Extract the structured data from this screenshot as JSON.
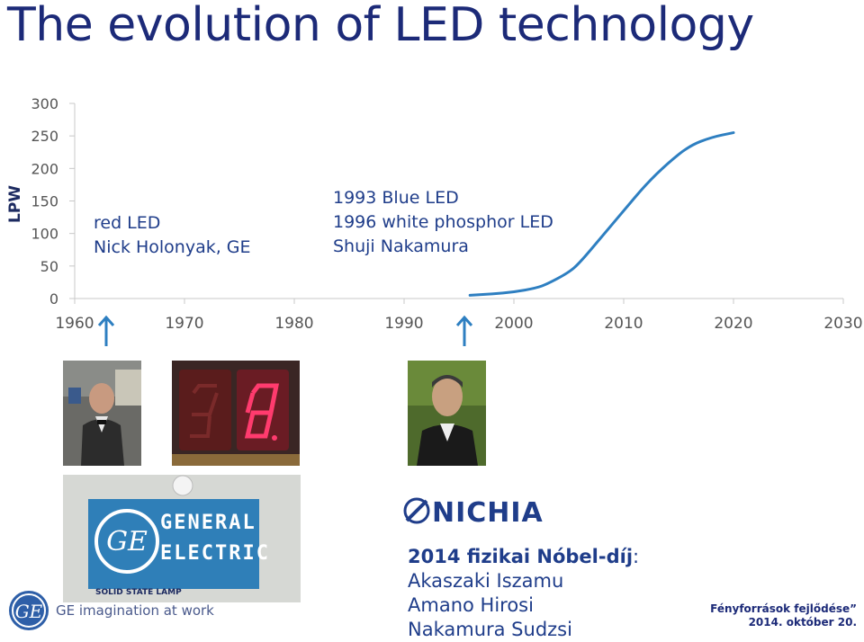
{
  "title": "The evolution of LED technology",
  "chart_data": {
    "type": "line",
    "ylabel": "LPW",
    "xlim": [
      1960,
      2030
    ],
    "ylim": [
      0,
      300
    ],
    "x_ticks": [
      1960,
      1970,
      1980,
      1990,
      2000,
      2010,
      2020,
      2030
    ],
    "y_ticks": [
      0,
      50,
      100,
      150,
      200,
      250,
      300
    ],
    "series": [
      {
        "x": [
          1996,
          1998,
          2000,
          2002,
          2003,
          2005,
          2006,
          2008,
          2010,
          2012,
          2014,
          2016,
          2018,
          2020
        ],
        "y": [
          5,
          7,
          10,
          16,
          22,
          40,
          55,
          95,
          135,
          175,
          208,
          235,
          248,
          255
        ]
      }
    ],
    "grid": false,
    "color": "#2e7fc1"
  },
  "annotations": {
    "left": [
      "red LED",
      "Nick Holonyak, GE"
    ],
    "mid": [
      "1993 Blue LED",
      "1996 white phosphor LED",
      "Shuji Nakamura"
    ]
  },
  "arrow_color": "#2e7fc1",
  "ge_card": {
    "line1": "GENERAL",
    "line2": "ELECTRIC",
    "caption": "SOLID STATE LAMP"
  },
  "nichia_logo": "NICHIA",
  "nobel": {
    "heading": "2014 fizikai Nóbel-díj",
    "names": [
      "Akaszaki Iszamu",
      "Amano Hirosi",
      "Nakamura Sudzsi"
    ]
  },
  "ge_logo_tagline": "GE imagination at work",
  "footer": {
    "line1": "Fényforrások fejlődése”",
    "line2": "2014. október 20."
  }
}
